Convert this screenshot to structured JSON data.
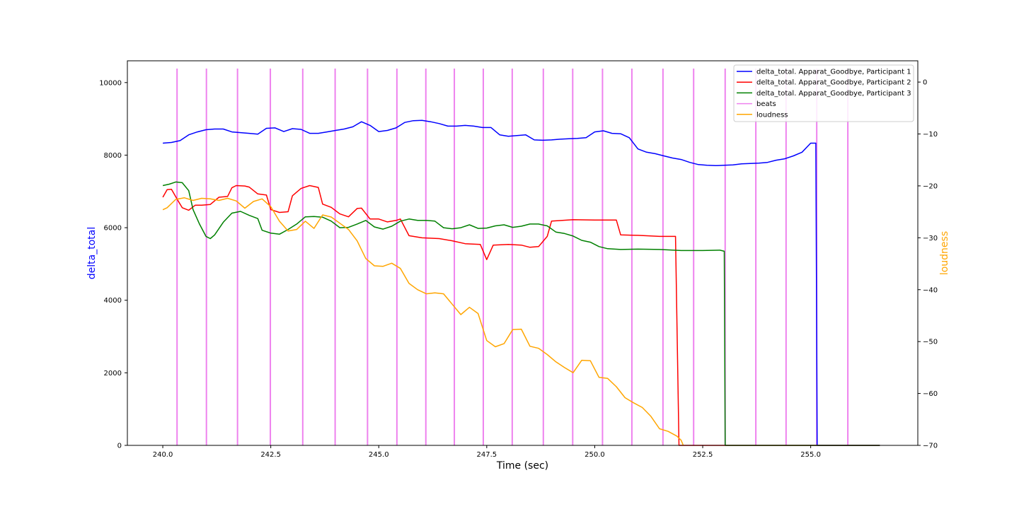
{
  "chart_data": {
    "type": "line",
    "title": "",
    "xlabel": "Time (sec)",
    "ylabel_left": "delta_total",
    "ylabel_right": "loudness",
    "xlim": [
      239.18,
      257.48
    ],
    "ylim_left": [
      0,
      10600
    ],
    "ylim_right": [
      -70,
      4.1
    ],
    "x_ticks": [
      240.0,
      242.5,
      245.0,
      247.5,
      250.0,
      252.5,
      255.0
    ],
    "x_tick_labels": [
      "240.0",
      "242.5",
      "245.0",
      "247.5",
      "250.0",
      "252.5",
      "255.0"
    ],
    "y_left_ticks": [
      0,
      2000,
      4000,
      6000,
      8000,
      10000
    ],
    "y_left_tick_labels": [
      "0",
      "2000",
      "4000",
      "6000",
      "8000",
      "10000"
    ],
    "y_right_ticks": [
      -70,
      -60,
      -50,
      -40,
      -30,
      -20,
      -10,
      0
    ],
    "y_right_tick_labels": [
      "−70",
      "−60",
      "−50",
      "−40",
      "−30",
      "−20",
      "−10",
      "0"
    ],
    "grid": false,
    "legend_placement": "top-right",
    "colors": {
      "ylabel_left": "#0000ff",
      "ylabel_right": "#ffa500"
    },
    "beats": [
      240.33,
      241.01,
      241.73,
      242.49,
      243.24,
      243.99,
      244.74,
      245.42,
      246.09,
      246.75,
      247.42,
      248.09,
      248.81,
      249.49,
      250.18,
      250.86,
      251.58,
      252.29,
      253.02,
      253.73,
      254.43,
      255.14,
      255.86
    ],
    "series": [
      {
        "name": "delta_total. Apparat_Goodbye, Participant 1",
        "axis": "left",
        "color": "#0000ff",
        "x": [
          240.0,
          240.2,
          240.4,
          240.6,
          240.8,
          241.0,
          241.2,
          241.4,
          241.6,
          241.8,
          242.0,
          242.2,
          242.4,
          242.6,
          242.8,
          243.0,
          243.2,
          243.4,
          243.6,
          243.8,
          244.0,
          244.2,
          244.4,
          244.6,
          244.8,
          245.0,
          245.2,
          245.4,
          245.6,
          245.8,
          246.0,
          246.2,
          246.4,
          246.6,
          246.8,
          247.0,
          247.2,
          247.4,
          247.6,
          247.8,
          248.0,
          248.2,
          248.4,
          248.6,
          248.8,
          249.0,
          249.2,
          249.4,
          249.6,
          249.8,
          250.0,
          250.2,
          250.4,
          250.6,
          250.8,
          251.0,
          251.2,
          251.4,
          251.6,
          251.8,
          252.0,
          252.2,
          252.4,
          252.6,
          252.8,
          253.0,
          253.2,
          253.4,
          253.6,
          253.8,
          254.0,
          254.2,
          254.4,
          254.6,
          254.8,
          255.0,
          255.1,
          255.12,
          255.15,
          256.6
        ],
        "values": [
          8330,
          8350,
          8400,
          8560,
          8640,
          8700,
          8720,
          8720,
          8640,
          8620,
          8600,
          8580,
          8740,
          8750,
          8650,
          8730,
          8710,
          8600,
          8600,
          8640,
          8680,
          8720,
          8780,
          8920,
          8820,
          8650,
          8680,
          8750,
          8900,
          8950,
          8960,
          8920,
          8870,
          8800,
          8800,
          8820,
          8800,
          8760,
          8760,
          8560,
          8520,
          8540,
          8560,
          8420,
          8410,
          8420,
          8440,
          8450,
          8460,
          8480,
          8640,
          8670,
          8600,
          8590,
          8480,
          8170,
          8080,
          8040,
          7980,
          7920,
          7880,
          7800,
          7740,
          7720,
          7710,
          7720,
          7730,
          7760,
          7770,
          7780,
          7800,
          7860,
          7900,
          7980,
          8080,
          8330,
          8330,
          8330,
          0,
          0
        ]
      },
      {
        "name": "delta_total. Apparat_Goodbye, Participant 2",
        "axis": "left",
        "color": "#ff0000",
        "x": [
          240.0,
          240.1,
          240.2,
          240.35,
          240.45,
          240.6,
          240.75,
          240.9,
          241.1,
          241.3,
          241.5,
          241.6,
          241.7,
          241.9,
          242.0,
          242.2,
          242.4,
          242.5,
          242.7,
          242.9,
          243.0,
          243.2,
          243.4,
          243.6,
          243.7,
          243.9,
          244.1,
          244.3,
          244.5,
          244.6,
          244.8,
          245.0,
          245.2,
          245.4,
          245.5,
          245.7,
          246.0,
          246.4,
          246.7,
          247.0,
          247.35,
          247.5,
          247.65,
          248.0,
          248.3,
          248.5,
          248.7,
          248.9,
          249.0,
          249.5,
          250.0,
          250.5,
          250.6,
          251.0,
          251.5,
          251.85,
          251.87,
          251.95,
          252.0,
          256.6
        ],
        "values": [
          6840,
          7050,
          7060,
          6750,
          6550,
          6480,
          6620,
          6620,
          6640,
          6840,
          6860,
          7100,
          7160,
          7150,
          7120,
          6930,
          6900,
          6500,
          6420,
          6440,
          6880,
          7080,
          7160,
          7110,
          6650,
          6560,
          6380,
          6300,
          6530,
          6540,
          6240,
          6240,
          6160,
          6200,
          6240,
          5780,
          5720,
          5700,
          5640,
          5560,
          5540,
          5120,
          5520,
          5540,
          5520,
          5460,
          5480,
          5760,
          6180,
          6220,
          6210,
          6210,
          5800,
          5790,
          5760,
          5760,
          5760,
          0,
          0,
          0
        ]
      },
      {
        "name": "delta_total. Apparat_Goodbye, Participant 3",
        "axis": "left",
        "color": "#008000",
        "x": [
          240.0,
          240.15,
          240.3,
          240.45,
          240.6,
          240.7,
          240.85,
          241.0,
          241.1,
          241.2,
          241.4,
          241.6,
          241.8,
          242.0,
          242.2,
          242.3,
          242.5,
          242.7,
          242.9,
          243.1,
          243.3,
          243.5,
          243.7,
          243.9,
          244.1,
          244.3,
          244.5,
          244.7,
          244.9,
          245.1,
          245.3,
          245.5,
          245.7,
          245.9,
          246.1,
          246.3,
          246.5,
          246.7,
          246.9,
          247.1,
          247.3,
          247.5,
          247.7,
          247.9,
          248.1,
          248.3,
          248.5,
          248.7,
          248.9,
          249.1,
          249.3,
          249.5,
          249.7,
          249.9,
          250.1,
          250.3,
          250.6,
          251.0,
          251.5,
          252.0,
          252.5,
          252.9,
          253.0,
          253.02,
          253.05,
          256.6
        ],
        "values": [
          7160,
          7200,
          7260,
          7240,
          7020,
          6500,
          6100,
          5760,
          5700,
          5800,
          6150,
          6400,
          6450,
          6340,
          6250,
          5930,
          5850,
          5820,
          5950,
          6100,
          6300,
          6310,
          6290,
          6180,
          6000,
          6010,
          6100,
          6200,
          6020,
          5960,
          6040,
          6180,
          6240,
          6200,
          6200,
          6180,
          6000,
          5970,
          6000,
          6080,
          5980,
          5990,
          6050,
          6080,
          6010,
          6040,
          6100,
          6100,
          6050,
          5880,
          5840,
          5770,
          5650,
          5600,
          5480,
          5420,
          5400,
          5410,
          5400,
          5370,
          5370,
          5380,
          5350,
          0,
          0,
          0
        ]
      },
      {
        "name": "loudness",
        "axis": "right",
        "color": "#ffa500",
        "x": [
          240.0,
          240.1,
          240.3,
          240.5,
          240.7,
          240.9,
          241.1,
          241.3,
          241.5,
          241.7,
          241.9,
          242.1,
          242.3,
          242.5,
          242.7,
          242.9,
          243.1,
          243.3,
          243.5,
          243.7,
          243.9,
          244.1,
          244.3,
          244.5,
          244.7,
          244.9,
          245.1,
          245.3,
          245.5,
          245.7,
          245.9,
          246.1,
          246.3,
          246.5,
          246.7,
          246.9,
          247.1,
          247.3,
          247.5,
          247.7,
          247.9,
          248.1,
          248.3,
          248.5,
          248.7,
          248.9,
          249.1,
          249.3,
          249.5,
          249.7,
          249.9,
          250.1,
          250.3,
          250.5,
          250.7,
          250.9,
          251.1,
          251.3,
          251.5,
          251.7,
          251.9,
          252.0,
          252.05
        ],
        "values": [
          -24.6,
          -24.2,
          -22.6,
          -22.3,
          -22.8,
          -22.4,
          -22.5,
          -22.8,
          -22.4,
          -22.9,
          -24.3,
          -23.0,
          -22.5,
          -24.0,
          -26.8,
          -28.7,
          -28.4,
          -26.8,
          -28.2,
          -25.6,
          -26.0,
          -27.2,
          -28.4,
          -30.6,
          -34.0,
          -35.4,
          -35.5,
          -34.9,
          -35.9,
          -38.8,
          -40.0,
          -40.8,
          -40.6,
          -40.8,
          -42.8,
          -44.8,
          -43.4,
          -44.6,
          -49.8,
          -51.0,
          -50.4,
          -47.7,
          -47.6,
          -50.9,
          -51.3,
          -52.5,
          -53.9,
          -55.0,
          -56.0,
          -53.6,
          -53.7,
          -56.9,
          -57.1,
          -58.7,
          -60.8,
          -61.8,
          -62.7,
          -64.4,
          -66.8,
          -67.3,
          -68.2,
          -69.0,
          -70.0
        ]
      }
    ],
    "legend": {
      "entries": [
        {
          "label": "delta_total. Apparat_Goodbye, Participant 1",
          "color": "#0000ff"
        },
        {
          "label": "delta_total. Apparat_Goodbye, Participant 2",
          "color": "#ff0000"
        },
        {
          "label": "delta_total. Apparat_Goodbye, Participant 3",
          "color": "#008000"
        },
        {
          "label": "beats",
          "color": "#ee82ee"
        },
        {
          "label": "loudness",
          "color": "#ffa500"
        }
      ]
    }
  }
}
